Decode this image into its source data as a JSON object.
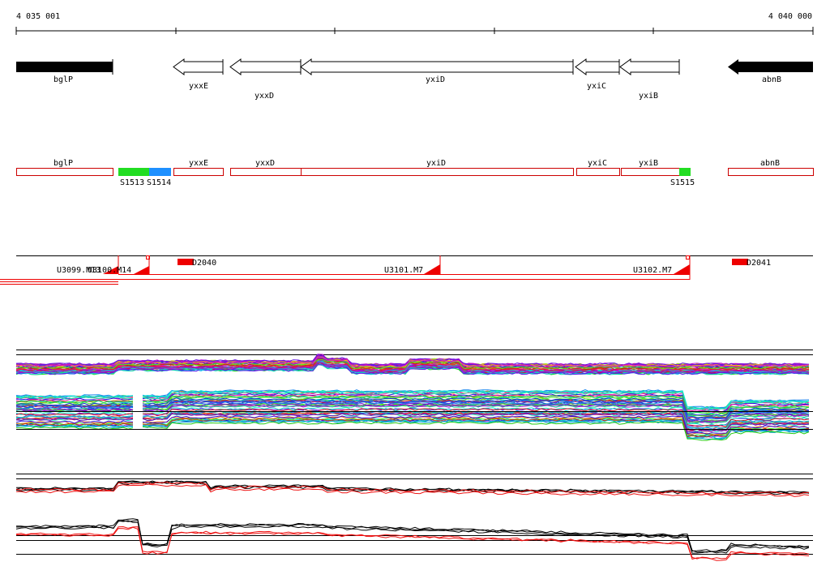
{
  "ruler": {
    "start_label": "4 035 001",
    "end_label": "4 040 000"
  },
  "genes": [
    {
      "name": "bglP",
      "strand": "+",
      "highlight": true
    },
    {
      "name": "yxxE",
      "strand": "-",
      "highlight": false
    },
    {
      "name": "yxxD",
      "strand": "-",
      "highlight": false
    },
    {
      "name": "yxiD",
      "strand": "-",
      "highlight": false
    },
    {
      "name": "yxiC",
      "strand": "-",
      "highlight": false
    },
    {
      "name": "yxiB",
      "strand": "-",
      "highlight": false
    },
    {
      "name": "abnB",
      "strand": "-",
      "highlight": true
    }
  ],
  "annotation_boxes": [
    {
      "name": "bglP"
    },
    {
      "name": "yxxE"
    },
    {
      "name": "yxxD"
    },
    {
      "name": "yxiD"
    },
    {
      "name": "yxiC"
    },
    {
      "name": "yxiB"
    },
    {
      "name": "abnB"
    }
  ],
  "segments": [
    {
      "label": "S1513",
      "color": "#22dd22"
    },
    {
      "label": "S1514",
      "color": "#1e90ff"
    },
    {
      "label": "S1515",
      "color": "#22dd22"
    }
  ],
  "transcripts": [
    {
      "label": "U3099.M13"
    },
    {
      "label": "U3100.M14"
    },
    {
      "label": "U3101.M7"
    },
    {
      "label": "U3102.M7"
    }
  ],
  "downstream_marks": [
    {
      "label": "D2040"
    },
    {
      "label": "D2041"
    }
  ],
  "colors": {
    "gene_outline": "#000000",
    "box_outline": "#cc0000",
    "transcript": "#ff0000",
    "profile_red": "#ee1111",
    "profile_black": "#000000"
  }
}
